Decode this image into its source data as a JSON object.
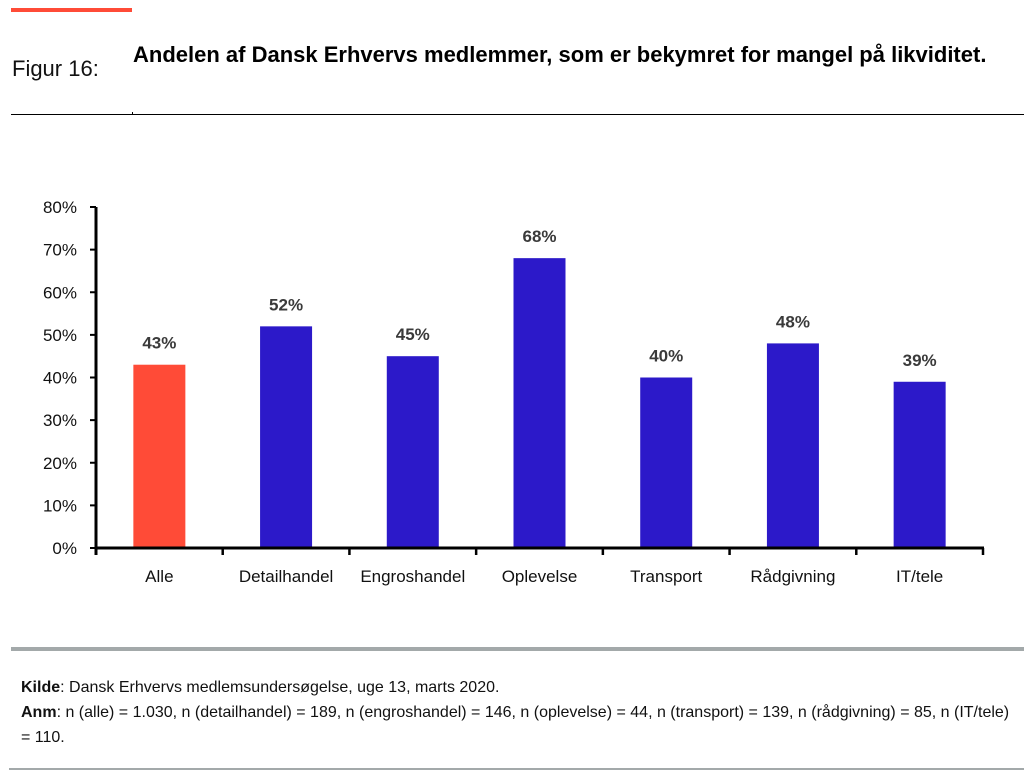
{
  "figure": {
    "label": "Figur 16:",
    "title": "Andelen af Dansk Erhvervs medlemmer, som er bekymret for mangel på likviditet."
  },
  "colors": {
    "accent": "#ff4b37",
    "highlight_bar": "#ff4b37",
    "bar": "#2c19c9",
    "axis": "#000000",
    "data_label": "#3a3a3a",
    "rule": "#a3a9aa"
  },
  "chart_data": {
    "type": "bar",
    "title": "Andelen af Dansk Erhvervs medlemmer, som er bekymret for mangel på likviditet.",
    "xlabel": "",
    "ylabel": "",
    "categories": [
      "Alle",
      "Detailhandel",
      "Engroshandel",
      "Oplevelse",
      "Transport",
      "Rådgivning",
      "IT/tele"
    ],
    "values": [
      43,
      52,
      45,
      68,
      40,
      48,
      39
    ],
    "data_labels": [
      "43%",
      "52%",
      "45%",
      "68%",
      "40%",
      "48%",
      "39%"
    ],
    "highlight_index": 0,
    "unit": "%",
    "ylim": [
      0,
      80
    ],
    "yticks": [
      0,
      10,
      20,
      30,
      40,
      50,
      60,
      70,
      80
    ],
    "ytick_labels": [
      "0%",
      "10%",
      "20%",
      "30%",
      "40%",
      "50%",
      "60%",
      "70%",
      "80%"
    ],
    "grid": false,
    "legend": "none"
  },
  "footer": {
    "source_label": "Kilde",
    "source_text": ": Dansk Erhvervs medlemsundersøgelse, uge 13, marts 2020.",
    "note_label": "Anm",
    "note_text": ": n (alle) = 1.030, n (detailhandel) = 189, n (engroshandel) = 146, n (oplevelse) = 44, n (transport) = 139, n (rådgivning) = 85, n (IT/tele) = 110."
  }
}
